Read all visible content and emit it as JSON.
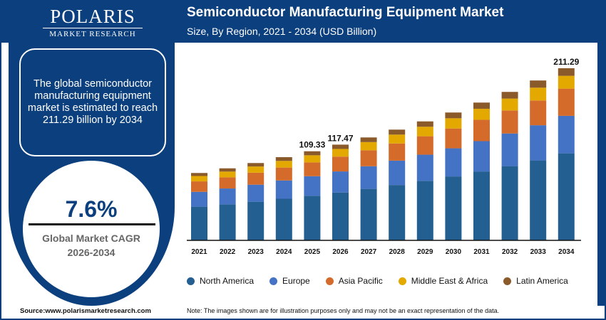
{
  "brand": {
    "name": "POLARIS",
    "tagline": "MARKET RESEARCH"
  },
  "summary": "The global semiconductor manufacturing equipment market is estimated to reach 211.29 billion by 2034",
  "cagr": {
    "value": "7.6%",
    "label": "Global Market CAGR",
    "period": "2026-2034"
  },
  "source": "Source:www.polarismarketresearch.com",
  "note": "Note: The images shown are for illustration purposes only and may not be an exact representation of the data.",
  "colors": {
    "primary": "#0c3f7d"
  },
  "chart_data": {
    "type": "stacked-bar",
    "title": "Semiconductor Manufacturing Equipment Market",
    "subtitle": "Size, By Region, 2021 - 2034 (USD Billion)",
    "categories": [
      "2021",
      "2022",
      "2023",
      "2024",
      "2025",
      "2026",
      "2027",
      "2028",
      "2029",
      "2030",
      "2031",
      "2032",
      "2033",
      "2034"
    ],
    "ylim": [
      0,
      240
    ],
    "grid": false,
    "legend_position": "bottom",
    "series": [
      {
        "name": "North America",
        "color": "#245f91",
        "values": [
          41.35,
          44.2,
          47.45,
          51.05,
          54.67,
          58.74,
          63.15,
          67.95,
          73.0,
          78.45,
          84.55,
          91.1,
          98.1,
          106.8
        ]
      },
      {
        "name": "Europe",
        "color": "#4472c4",
        "values": [
          18.19,
          19.45,
          20.88,
          22.46,
          24.05,
          25.84,
          27.79,
          29.9,
          32.12,
          34.52,
          37.2,
          40.08,
          43.16,
          46.0
        ]
      },
      {
        "name": "Asia Pacific",
        "color": "#d46b2a",
        "values": [
          12.82,
          13.7,
          14.71,
          15.83,
          16.95,
          18.21,
          19.58,
          21.06,
          22.63,
          24.32,
          26.21,
          28.24,
          30.41,
          33.4
        ]
      },
      {
        "name": "Middle East & Africa",
        "color": "#e3a900",
        "values": [
          6.62,
          7.07,
          7.59,
          8.17,
          8.75,
          9.4,
          10.1,
          10.87,
          11.68,
          12.55,
          13.53,
          14.58,
          15.7,
          15.7
        ]
      },
      {
        "name": "Latin America",
        "color": "#8b5a2b",
        "values": [
          3.72,
          3.98,
          4.27,
          4.59,
          4.92,
          5.29,
          5.68,
          6.12,
          6.57,
          7.06,
          7.61,
          8.2,
          8.83,
          9.39
        ]
      }
    ],
    "data_labels": [
      {
        "category": "2025",
        "text": "109.33"
      },
      {
        "category": "2026",
        "text": "117.47"
      },
      {
        "category": "2034",
        "text": "211.29"
      }
    ]
  }
}
